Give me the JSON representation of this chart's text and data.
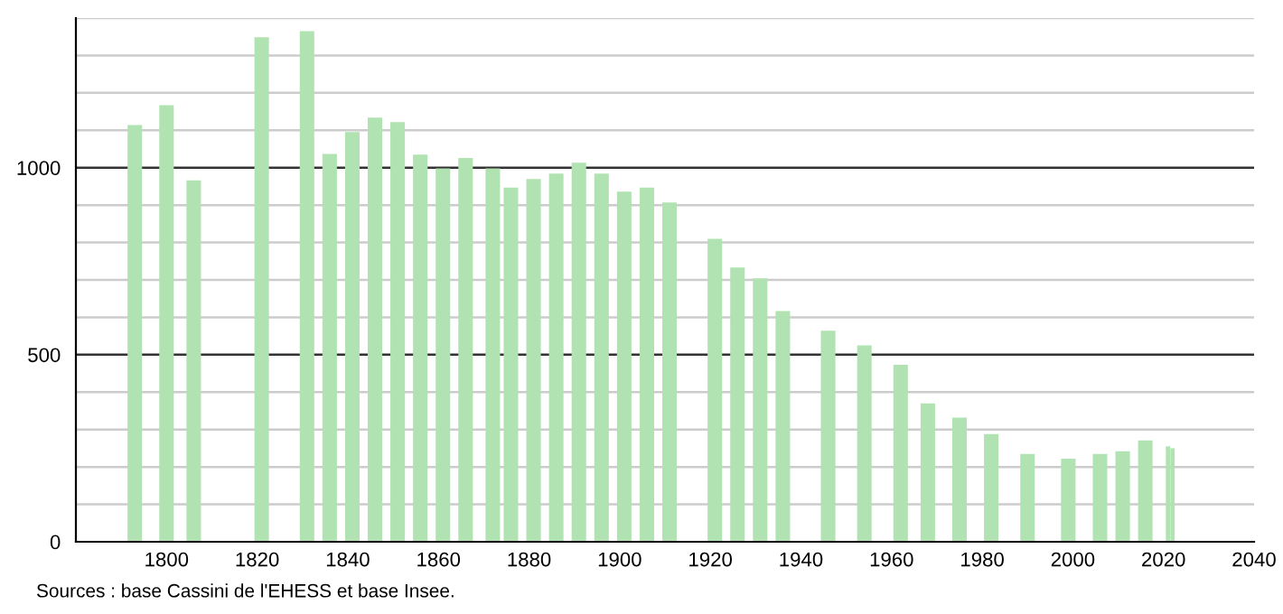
{
  "chart_data": {
    "type": "bar",
    "x": [
      1793,
      1800,
      1806,
      1821,
      1831,
      1836,
      1841,
      1846,
      1851,
      1856,
      1861,
      1866,
      1872,
      1876,
      1881,
      1886,
      1891,
      1896,
      1901,
      1906,
      1911,
      1921,
      1926,
      1931,
      1936,
      1946,
      1954,
      1962,
      1968,
      1975,
      1982,
      1990,
      1999,
      2006,
      2011,
      2016,
      2021,
      2022
    ],
    "values": [
      1114,
      1167,
      966,
      1349,
      1365,
      1037,
      1095,
      1134,
      1122,
      1035,
      998,
      1026,
      998,
      947,
      970,
      984,
      1013,
      984,
      936,
      947,
      907,
      810,
      733,
      704,
      617,
      564,
      525,
      473,
      370,
      332,
      288,
      235,
      222,
      235,
      242,
      271,
      255,
      250
    ],
    "color": "#b0e2b2",
    "xlim": [
      1780,
      2040
    ],
    "xticks": [
      1800,
      1820,
      1840,
      1860,
      1880,
      1900,
      1920,
      1940,
      1960,
      1980,
      2000,
      2020,
      2040
    ],
    "ylim": [
      0,
      1400
    ],
    "yticks": [
      0,
      {
        "value": 100,
        "label": null
      },
      {
        "value": 200,
        "label": null
      },
      {
        "value": 300,
        "label": null
      },
      {
        "value": 400,
        "label": null
      },
      500,
      {
        "value": 600,
        "label": null
      },
      {
        "value": 700,
        "label": null
      },
      {
        "value": 800,
        "label": null
      },
      {
        "value": 900,
        "label": null
      },
      1000,
      {
        "value": 1100,
        "label": null
      },
      {
        "value": 1200,
        "label": null
      },
      {
        "value": 1300,
        "label": null
      },
      {
        "value": 1400,
        "label": null
      }
    ],
    "grid": "y",
    "annotations": [
      "Sources : base Cassini de l'EHESS et base Insee."
    ]
  }
}
